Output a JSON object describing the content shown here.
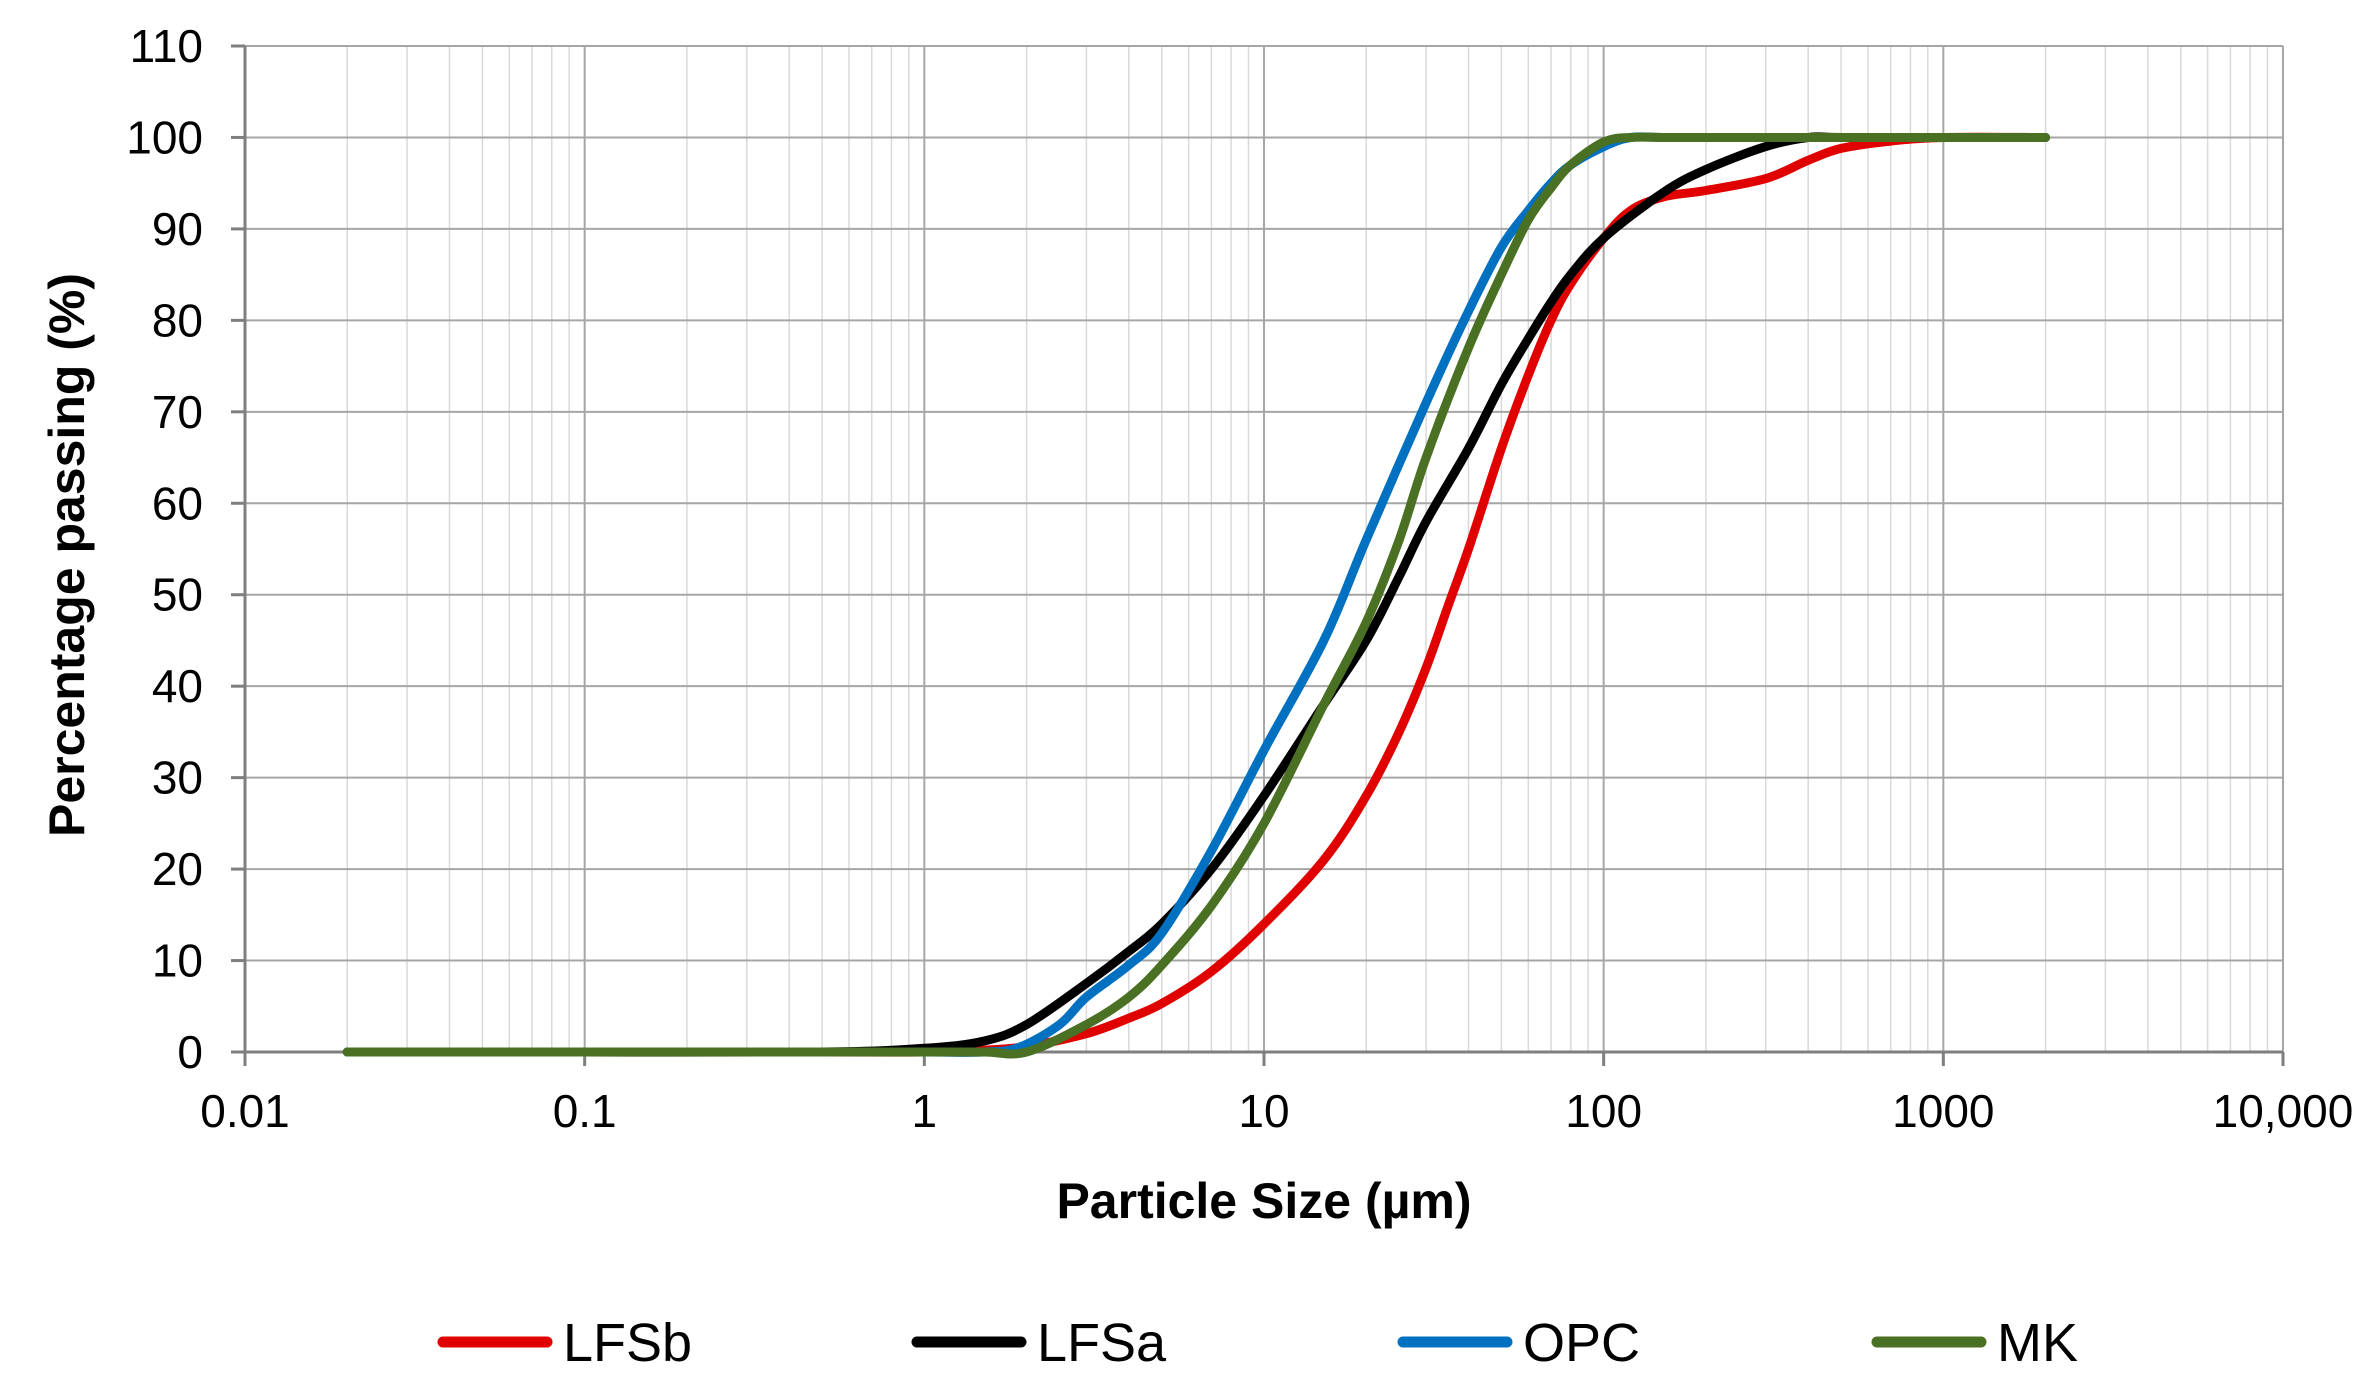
{
  "chart_data": {
    "type": "line",
    "title": "",
    "xlabel": "Particle Size (µm)",
    "ylabel": "Percentage passing  (%)",
    "xscale": "log",
    "xlim": [
      0.01,
      10000
    ],
    "ylim": [
      0,
      110
    ],
    "x_ticks": [
      0.01,
      0.1,
      1,
      10,
      100,
      1000,
      10000
    ],
    "x_tick_labels": [
      "0.01",
      "0.1",
      "1",
      "10",
      "100",
      "1000",
      "10,000"
    ],
    "y_ticks": [
      0,
      10,
      20,
      30,
      40,
      50,
      60,
      70,
      80,
      90,
      100,
      110
    ],
    "y_tick_labels": [
      "0",
      "10",
      "20",
      "30",
      "40",
      "50",
      "60",
      "70",
      "80",
      "90",
      "100",
      "110"
    ],
    "grid": true,
    "legend_position": "bottom",
    "series": [
      {
        "name": "LFSb",
        "color": "#e00000",
        "x": [
          0.02,
          0.1,
          0.5,
          1,
          1.5,
          2,
          3,
          4,
          5,
          7,
          10,
          15,
          20,
          25,
          30,
          35,
          40,
          50,
          60,
          70,
          80,
          100,
          120,
          150,
          200,
          300,
          400,
          500,
          700,
          1000,
          2000
        ],
        "y": [
          0,
          0,
          0,
          0,
          0.2,
          0.6,
          2,
          3.7,
          5.3,
          8.8,
          14,
          21,
          28,
          35,
          42,
          49,
          55,
          66,
          74,
          80,
          84,
          89,
          92,
          93.5,
          94.2,
          95.5,
          97.5,
          98.8,
          99.6,
          100,
          100
        ]
      },
      {
        "name": "LFSa",
        "color": "#000000",
        "x": [
          0.02,
          0.1,
          0.5,
          1,
          1.5,
          2,
          3,
          4,
          5,
          7,
          10,
          15,
          20,
          25,
          30,
          40,
          50,
          60,
          70,
          80,
          100,
          150,
          200,
          300,
          400,
          500,
          1000,
          2000
        ],
        "y": [
          0,
          0,
          0,
          0.4,
          1.2,
          3,
          7.5,
          11,
          14,
          20,
          28,
          38,
          45,
          52,
          58,
          66,
          73,
          78,
          82,
          85,
          89,
          94,
          96.5,
          99,
          100,
          100,
          100,
          100
        ]
      },
      {
        "name": "OPC",
        "color": "#0070c0",
        "x": [
          0.02,
          0.1,
          0.5,
          1,
          1.5,
          1.9,
          2.5,
          3,
          4,
          5,
          7,
          10,
          15,
          20,
          30,
          40,
          50,
          60,
          70,
          80,
          100,
          120,
          150,
          200,
          500,
          1000,
          2000
        ],
        "y": [
          0,
          0,
          0,
          0,
          0,
          0.5,
          3,
          6,
          9.5,
          13,
          22,
          33,
          45,
          56,
          71,
          81,
          88,
          92,
          95,
          97,
          99,
          100,
          100,
          100,
          100,
          100,
          100
        ]
      },
      {
        "name": "MK",
        "color": "#4a7023",
        "x": [
          0.02,
          0.1,
          0.5,
          1,
          1.5,
          2,
          3,
          4,
          5,
          7,
          10,
          15,
          20,
          25,
          30,
          40,
          50,
          60,
          70,
          80,
          100,
          120,
          150,
          200,
          500,
          1000,
          2000
        ],
        "y": [
          0,
          0,
          0,
          0,
          0,
          0,
          3,
          6,
          9.5,
          16,
          25,
          38,
          47,
          56,
          65,
          77,
          85,
          91,
          94.5,
          97,
          99.5,
          100,
          100,
          100,
          100,
          100,
          100
        ]
      }
    ]
  }
}
